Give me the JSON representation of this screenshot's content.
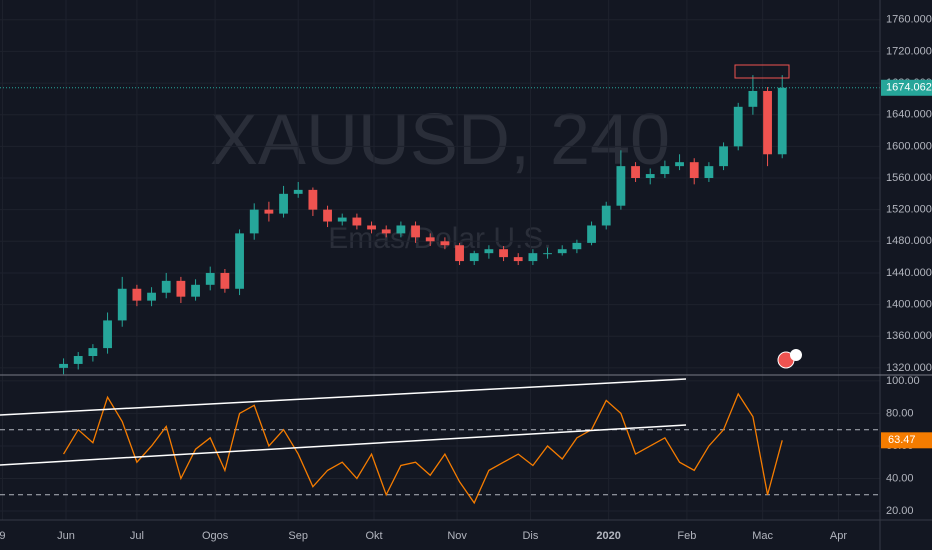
{
  "chart_data": [
    {
      "type": "candlestick",
      "title": "XAUUSD, 240",
      "subtitle": "Emas/Dolar U.S.",
      "up_color": "#26a69a",
      "down_color": "#ef5350",
      "last_color": "#26a69a",
      "x": [
        26,
        32,
        38,
        44,
        50,
        56,
        62,
        68,
        74,
        80,
        86,
        92,
        98,
        104,
        110,
        116,
        122,
        128,
        134,
        140,
        146,
        152,
        158,
        164,
        170,
        176,
        182,
        188,
        194,
        200,
        206,
        212,
        218,
        224,
        230,
        236,
        242,
        248,
        254,
        260,
        266,
        272,
        278,
        284,
        290,
        296,
        302,
        308,
        314,
        320
      ],
      "open": [
        1320,
        1325,
        1335,
        1345,
        1380,
        1420,
        1405,
        1415,
        1430,
        1410,
        1425,
        1440,
        1420,
        1490,
        1520,
        1515,
        1540,
        1545,
        1520,
        1505,
        1510,
        1500,
        1495,
        1490,
        1500,
        1485,
        1480,
        1475,
        1455,
        1465,
        1470,
        1460,
        1455,
        1465,
        1465,
        1470,
        1478,
        1500,
        1525,
        1575,
        1560,
        1565,
        1575,
        1580,
        1560,
        1575,
        1600,
        1650,
        1670,
        1590
      ],
      "high": [
        1332,
        1340,
        1350,
        1390,
        1435,
        1425,
        1422,
        1440,
        1435,
        1432,
        1448,
        1445,
        1495,
        1528,
        1530,
        1550,
        1555,
        1548,
        1525,
        1515,
        1515,
        1505,
        1500,
        1505,
        1505,
        1490,
        1485,
        1478,
        1468,
        1475,
        1474,
        1465,
        1470,
        1472,
        1475,
        1482,
        1505,
        1530,
        1595,
        1580,
        1572,
        1582,
        1590,
        1585,
        1580,
        1605,
        1655,
        1690,
        1675,
        1690
      ],
      "low": [
        1312,
        1318,
        1328,
        1338,
        1372,
        1398,
        1398,
        1408,
        1402,
        1405,
        1418,
        1415,
        1412,
        1482,
        1505,
        1510,
        1535,
        1512,
        1498,
        1500,
        1495,
        1490,
        1485,
        1485,
        1478,
        1474,
        1470,
        1450,
        1450,
        1458,
        1455,
        1450,
        1450,
        1458,
        1462,
        1465,
        1475,
        1495,
        1520,
        1555,
        1552,
        1560,
        1570,
        1552,
        1555,
        1570,
        1595,
        1640,
        1575,
        1585
      ],
      "close": [
        1325,
        1335,
        1345,
        1380,
        1420,
        1405,
        1415,
        1430,
        1410,
        1425,
        1440,
        1420,
        1490,
        1520,
        1515,
        1540,
        1545,
        1520,
        1505,
        1510,
        1500,
        1495,
        1490,
        1500,
        1485,
        1480,
        1475,
        1455,
        1465,
        1470,
        1460,
        1455,
        1465,
        1465,
        1470,
        1478,
        1500,
        1525,
        1575,
        1560,
        1565,
        1575,
        1580,
        1560,
        1575,
        1600,
        1650,
        1670,
        1590,
        1674.062
      ],
      "xlim": [
        0,
        360
      ],
      "ylim": [
        1311,
        1785
      ],
      "yticks": [
        {
          "value": 1320,
          "label": "1320.000"
        },
        {
          "value": 1360,
          "label": "1360.000"
        },
        {
          "value": 1400,
          "label": "1400.000"
        },
        {
          "value": 1440,
          "label": "1440.000"
        },
        {
          "value": 1480,
          "label": "1480.000"
        },
        {
          "value": 1520,
          "label": "1520.000"
        },
        {
          "value": 1560,
          "label": "1560.000"
        },
        {
          "value": 1600,
          "label": "1600.000"
        },
        {
          "value": 1640,
          "label": "1640.000"
        },
        {
          "value": 1680,
          "label": "1680.000"
        },
        {
          "value": 1720,
          "label": "1720.000"
        },
        {
          "value": 1760,
          "label": "1760.000"
        }
      ]
    },
    {
      "type": "line",
      "color": "#f57c00",
      "x": [
        26,
        32,
        38,
        44,
        50,
        56,
        62,
        68,
        74,
        80,
        86,
        92,
        98,
        104,
        110,
        116,
        122,
        128,
        134,
        140,
        146,
        152,
        158,
        164,
        170,
        176,
        182,
        188,
        194,
        200,
        206,
        212,
        218,
        224,
        230,
        236,
        242,
        248,
        254,
        260,
        266,
        272,
        278,
        284,
        290,
        296,
        302,
        308,
        314,
        320
      ],
      "values": [
        55,
        70,
        62,
        90,
        75,
        50,
        60,
        72,
        40,
        58,
        65,
        45,
        80,
        85,
        60,
        70,
        55,
        35,
        45,
        50,
        40,
        55,
        30,
        48,
        50,
        42,
        55,
        38,
        25,
        45,
        50,
        55,
        48,
        60,
        52,
        65,
        70,
        88,
        80,
        55,
        60,
        65,
        50,
        45,
        60,
        70,
        92,
        78,
        30,
        63.47
      ],
      "bands": [
        70,
        30
      ],
      "xlim": [
        0,
        360
      ],
      "ylim": [
        14.5,
        103
      ],
      "yticks": [
        {
          "value": 20,
          "label": "20.00"
        },
        {
          "value": 40,
          "label": "40.00"
        },
        {
          "value": 60,
          "label": "60.00"
        },
        {
          "value": 80,
          "label": "80.00"
        },
        {
          "value": 100,
          "label": "100.00"
        }
      ],
      "xticks": [
        {
          "value": 1,
          "label": "9"
        },
        {
          "value": 27,
          "label": "Jun"
        },
        {
          "value": 56,
          "label": "Jul"
        },
        {
          "value": 88,
          "label": "Ogos"
        },
        {
          "value": 122,
          "label": "Sep"
        },
        {
          "value": 153,
          "label": "Okt"
        },
        {
          "value": 187,
          "label": "Nov"
        },
        {
          "value": 217,
          "label": "Dis"
        },
        {
          "value": 249,
          "label": "2020"
        },
        {
          "value": 281,
          "label": "Feb"
        },
        {
          "value": 312,
          "label": "Mac"
        },
        {
          "value": 343,
          "label": "Apr"
        }
      ]
    }
  ]
}
